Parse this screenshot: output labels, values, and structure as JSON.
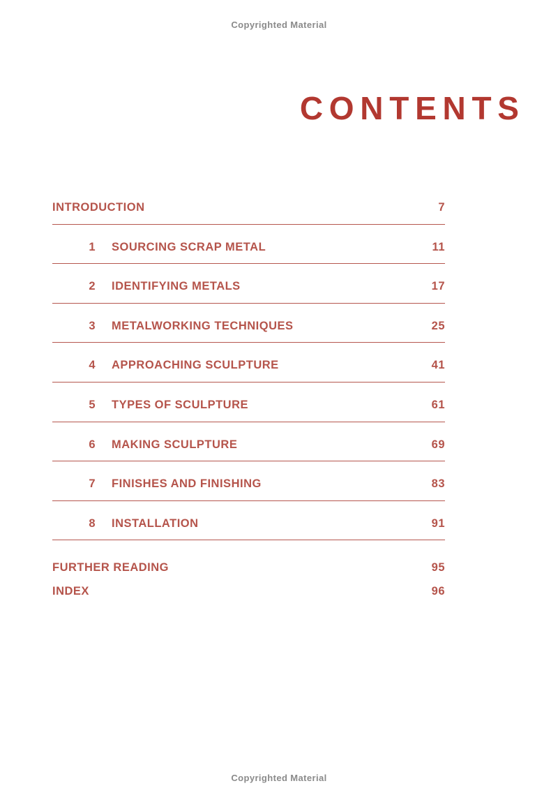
{
  "page": {
    "copyright_top": "Copyrighted Material",
    "copyright_bottom": "Copyrighted Material",
    "title": "CONTENTS"
  },
  "toc": {
    "entries": [
      {
        "number": "",
        "label": "INTRODUCTION",
        "page": "7"
      },
      {
        "number": "1",
        "label": "SOURCING SCRAP METAL",
        "page": "11"
      },
      {
        "number": "2",
        "label": "IDENTIFYING METALS",
        "page": "17"
      },
      {
        "number": "3",
        "label": "METALWORKING TECHNIQUES",
        "page": "25"
      },
      {
        "number": "4",
        "label": "APPROACHING SCULPTURE",
        "page": "41"
      },
      {
        "number": "5",
        "label": "TYPES OF SCULPTURE",
        "page": "61"
      },
      {
        "number": "6",
        "label": "MAKING SCULPTURE",
        "page": "69"
      },
      {
        "number": "7",
        "label": "FINISHES AND FINISHING",
        "page": "83"
      },
      {
        "number": "8",
        "label": "INSTALLATION",
        "page": "91"
      }
    ],
    "extras": [
      {
        "label": "FURTHER READING",
        "page": "95"
      },
      {
        "label": "INDEX",
        "page": "96"
      }
    ]
  },
  "colors": {
    "title_red": "#b23830",
    "entry_red": "#b5544b",
    "rule_red": "#b5564e",
    "copyright_gray": "#8a8a8a"
  }
}
